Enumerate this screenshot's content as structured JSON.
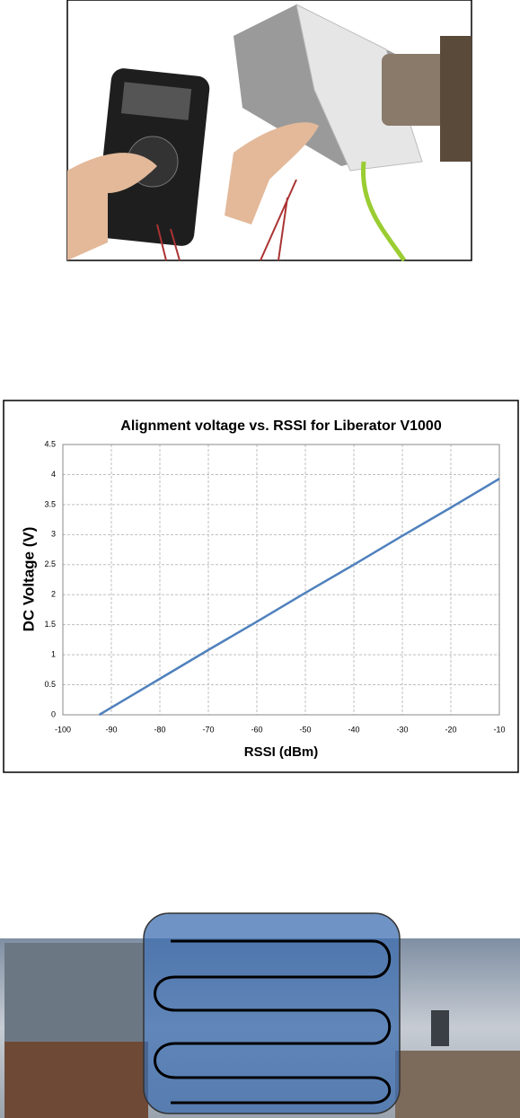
{
  "chart_data": {
    "type": "line",
    "title": "Alignment voltage vs. RSSI for Liberator V1000",
    "x_label": "RSSI (dBm)",
    "y_label": "DC Voltage (V)",
    "x": [
      -92.5,
      -80,
      -70,
      -60,
      -50,
      -40,
      -30,
      -20,
      -10
    ],
    "series": [
      {
        "name": "Alignment voltage",
        "color": "#4f81bd",
        "values": [
          0,
          0.6,
          1.08,
          1.55,
          2.03,
          2.5,
          2.98,
          3.45,
          3.93
        ]
      }
    ],
    "xlim": [
      -100,
      -10
    ],
    "xticks": [
      -100,
      -90,
      -80,
      -70,
      -60,
      -50,
      -40,
      -30,
      -20,
      -10
    ],
    "ylim": [
      0,
      4.5
    ],
    "yticks": [
      0,
      0.5,
      1,
      1.5,
      2,
      2.5,
      3,
      3.5,
      4,
      4.5
    ],
    "grid": true
  }
}
